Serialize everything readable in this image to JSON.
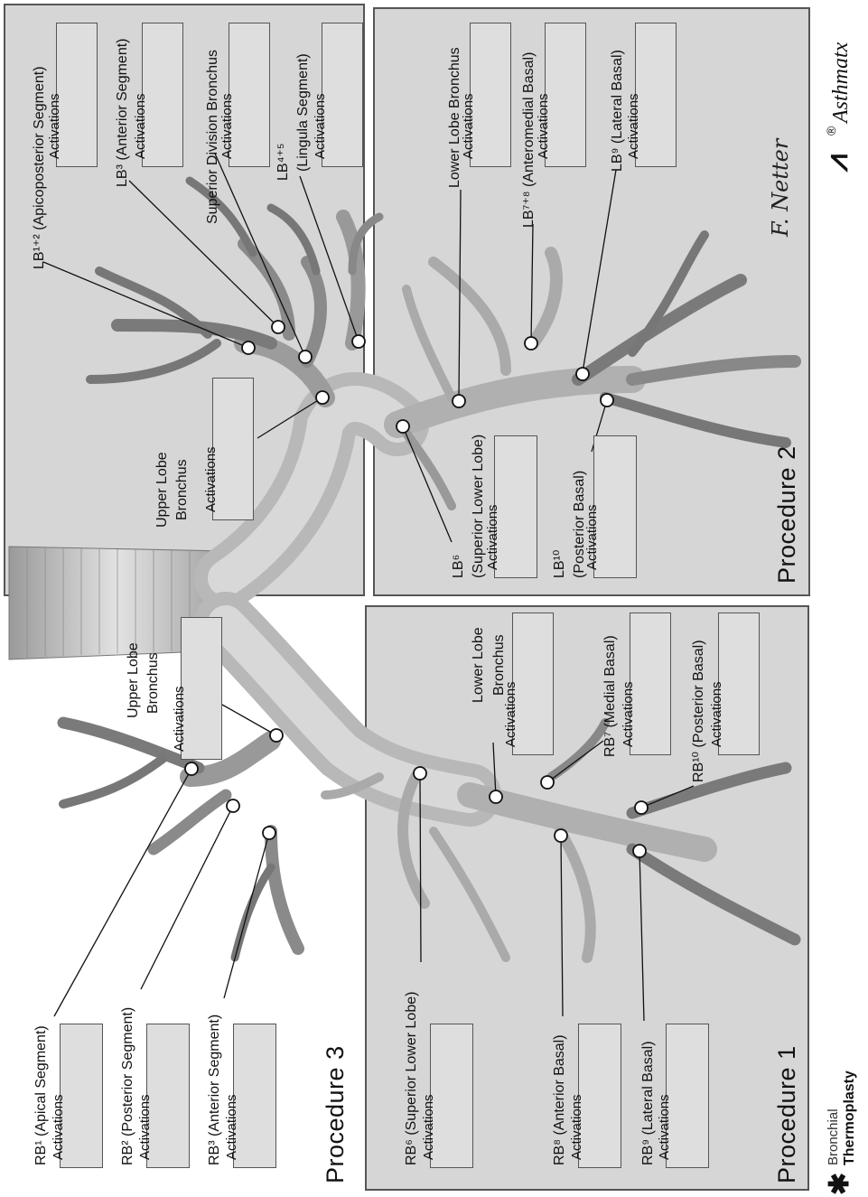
{
  "panels": {
    "procedure1": "Procedure 1",
    "procedure2": "Procedure 2",
    "procedure3": "Procedure 3"
  },
  "box_label": "Activations",
  "labels": {
    "lb12": "LB¹⁺² (Apicoposterior Segment)",
    "lb3": "LB³ (Anterior Segment)",
    "superior_division": "Superior Division Bronchus",
    "lb45_a": "LB⁴⁺⁵",
    "lb45_b": "(Lingula Segment)",
    "upper_lobe_left_a": "Upper Lobe",
    "upper_lobe_left_b": "Bronchus",
    "lower_lobe_left": "Lower Lobe Bronchus",
    "lb78": "LB⁷⁺⁸ (Anteromedial Basal)",
    "lb9": "LB⁹ (Lateral Basal)",
    "lb6_a": "LB⁶",
    "lb6_b": "(Superior Lower Lobe)",
    "lb10_a": "LB¹⁰",
    "lb10_b": "(Posterior Basal)",
    "rb1": "RB¹ (Apical Segment)",
    "rb2": "RB² (Posterior Segment)",
    "rb3": "RB³ (Anterior Segment)",
    "upper_lobe_right_a": "Upper Lobe",
    "upper_lobe_right_b": "Bronchus",
    "rb6": "RB⁶ (Superior Lower Lobe)",
    "rb8": "RB⁸ (Anterior Basal)",
    "rb9": "RB⁹ (Lateral Basal)",
    "lower_lobe_right_a": "Lower Lobe",
    "lower_lobe_right_b": "Bronchus",
    "rb7": "RB⁷ (Medial Basal)",
    "rb10": "RB¹⁰ (Posterior Basal)"
  },
  "brand": {
    "left_a": "Bronchial",
    "left_b": "Thermoplasty",
    "right": "Asthmatx",
    "registered": "®",
    "signature": "F. Netter"
  },
  "colors": {
    "panel": "#d6d6d6",
    "airway": "#b4b4b4",
    "airway_dark": "#6a6a6a"
  }
}
